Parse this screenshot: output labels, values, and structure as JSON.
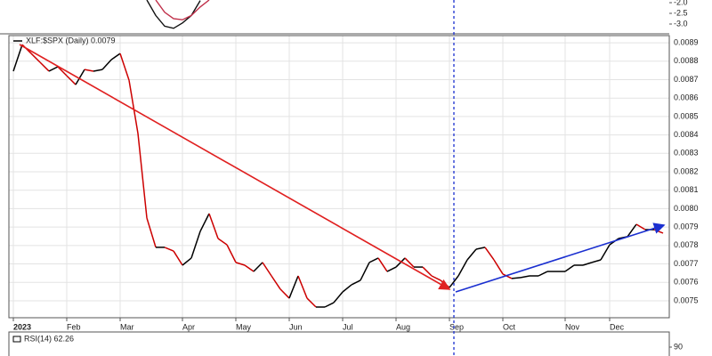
{
  "chart_data": [
    {
      "type": "line",
      "ylim": [
        -3.417,
        -1.875
      ],
      "yticks": [
        {
          "value": -2,
          "label": "-2.0"
        },
        {
          "value": -2.5,
          "label": "-2.5"
        },
        {
          "value": -3,
          "label": "-3.0"
        }
      ],
      "series": [
        {
          "color": "#111111",
          "values": [
            null,
            null,
            null,
            null,
            null,
            null,
            null,
            null,
            null,
            null,
            null,
            null,
            null,
            null,
            null,
            -1.875,
            -2.6,
            -3.1,
            -3.2,
            -2.95,
            -2.6,
            -1.9,
            null,
            null,
            null,
            null,
            null,
            null,
            null,
            null,
            null,
            null,
            null,
            null,
            null,
            null,
            null,
            null,
            null,
            null,
            null,
            null,
            null,
            null,
            null,
            null,
            null,
            null,
            null,
            null,
            null,
            null,
            null,
            null,
            null,
            null,
            null,
            null,
            null,
            null,
            null,
            null,
            null,
            null,
            null,
            null,
            null,
            null,
            null,
            null,
            null,
            null,
            null,
            null
          ]
        },
        {
          "color": "#c0304a",
          "values": [
            null,
            null,
            null,
            null,
            null,
            null,
            null,
            null,
            null,
            null,
            null,
            null,
            null,
            null,
            null,
            null,
            -1.875,
            -2.45,
            -2.75,
            -2.8,
            -2.6,
            -2.2,
            -1.875,
            null,
            null,
            null,
            null,
            null,
            null,
            null,
            null,
            null,
            null,
            null,
            null,
            null,
            null,
            null,
            null,
            null,
            null,
            null,
            null,
            null,
            null,
            null,
            null,
            null,
            null,
            null,
            null,
            null,
            null,
            null,
            null,
            null,
            null,
            null,
            null,
            null,
            null,
            null,
            null,
            null,
            null,
            null,
            null,
            null,
            null,
            null,
            null,
            null,
            null,
            null
          ]
        }
      ]
    },
    {
      "type": "line",
      "title": "XLF:$SPX (Daily) 0.0079",
      "grid": true,
      "categories": [
        "2023",
        null,
        null,
        null,
        null,
        null,
        "Feb",
        null,
        null,
        null,
        null,
        null,
        "Mar",
        null,
        null,
        null,
        null,
        null,
        null,
        "Apr",
        null,
        null,
        null,
        null,
        null,
        "May",
        null,
        null,
        null,
        null,
        null,
        "Jun",
        null,
        null,
        null,
        null,
        null,
        "Jul",
        null,
        null,
        null,
        null,
        null,
        "Aug",
        null,
        null,
        null,
        null,
        null,
        "Sep",
        null,
        null,
        null,
        null,
        null,
        "Oct",
        null,
        null,
        null,
        null,
        null,
        null,
        "Nov",
        null,
        null,
        null,
        null,
        "Dec",
        null,
        null,
        null,
        null,
        null,
        null
      ],
      "ylim": [
        0.007408,
        0.008939
      ],
      "yticks": [
        0.0075,
        0.0076,
        0.0077,
        0.0078,
        0.0079,
        {
          "value": 0.008,
          "label": "0.0080"
        },
        0.0081,
        0.0082,
        0.0083,
        0.0084,
        0.0085,
        0.0086,
        0.0087,
        0.0088,
        0.0089
      ],
      "series": [
        {
          "color": "#000000",
          "down_color": "#cc0000",
          "values": [
            0.008746,
            0.00889,
            0.008842,
            0.008794,
            0.008746,
            0.00877,
            0.008721,
            0.008673,
            0.008755,
            0.008746,
            0.008755,
            0.008808,
            0.008842,
            0.008697,
            0.008408,
            0.007949,
            0.00779,
            0.00779,
            0.00777,
            0.007693,
            0.007732,
            0.007877,
            0.007973,
            0.007838,
            0.007804,
            0.007708,
            0.007693,
            0.007659,
            0.007708,
            0.007635,
            0.007563,
            0.007514,
            0.007635,
            0.007514,
            0.007466,
            0.007466,
            0.00749,
            0.007548,
            0.007587,
            0.007611,
            0.007708,
            0.007732,
            0.007659,
            0.007683,
            0.007732,
            0.007683,
            0.007683,
            0.007635,
            0.007611,
            0.007572,
            0.007635,
            0.007722,
            0.00778,
            0.00779,
            0.007722,
            0.007645,
            0.007621,
            0.007626,
            0.007635,
            0.007635,
            0.007659,
            0.007659,
            0.007659,
            0.007693,
            0.007693,
            0.007708,
            0.007722,
            0.007804,
            0.007838,
            0.007848,
            0.007915,
            0.007886,
            0.007886,
            0.007867
          ]
        }
      ]
    },
    {
      "type": "line",
      "title": "RSI(14) 62.26",
      "ylim": [
        0,
        105
      ],
      "yticks": [
        90
      ]
    }
  ]
}
